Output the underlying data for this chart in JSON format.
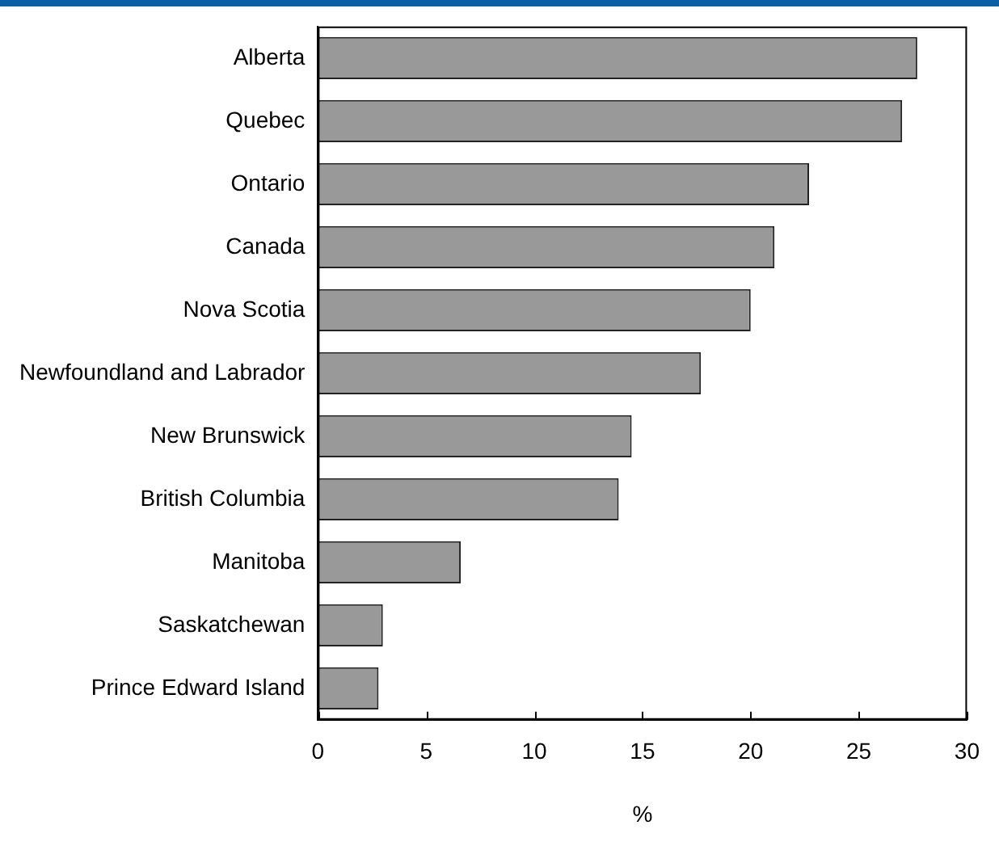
{
  "chart_data": {
    "type": "bar",
    "orientation": "horizontal",
    "categories": [
      "Alberta",
      "Quebec",
      "Ontario",
      "Canada",
      "Nova Scotia",
      "Newfoundland and Labrador",
      "New Brunswick",
      "British Columbia",
      "Manitoba",
      "Saskatchewan",
      "Prince Edward Island"
    ],
    "values": [
      27.7,
      27.0,
      22.7,
      21.1,
      20.0,
      17.7,
      14.5,
      13.9,
      6.6,
      3.0,
      2.8
    ],
    "color": "#999999",
    "xlabel": "%",
    "xlim": [
      0,
      30
    ],
    "xticks": [
      0,
      5,
      10,
      15,
      20,
      25,
      30
    ],
    "grid": false,
    "legend": false
  }
}
